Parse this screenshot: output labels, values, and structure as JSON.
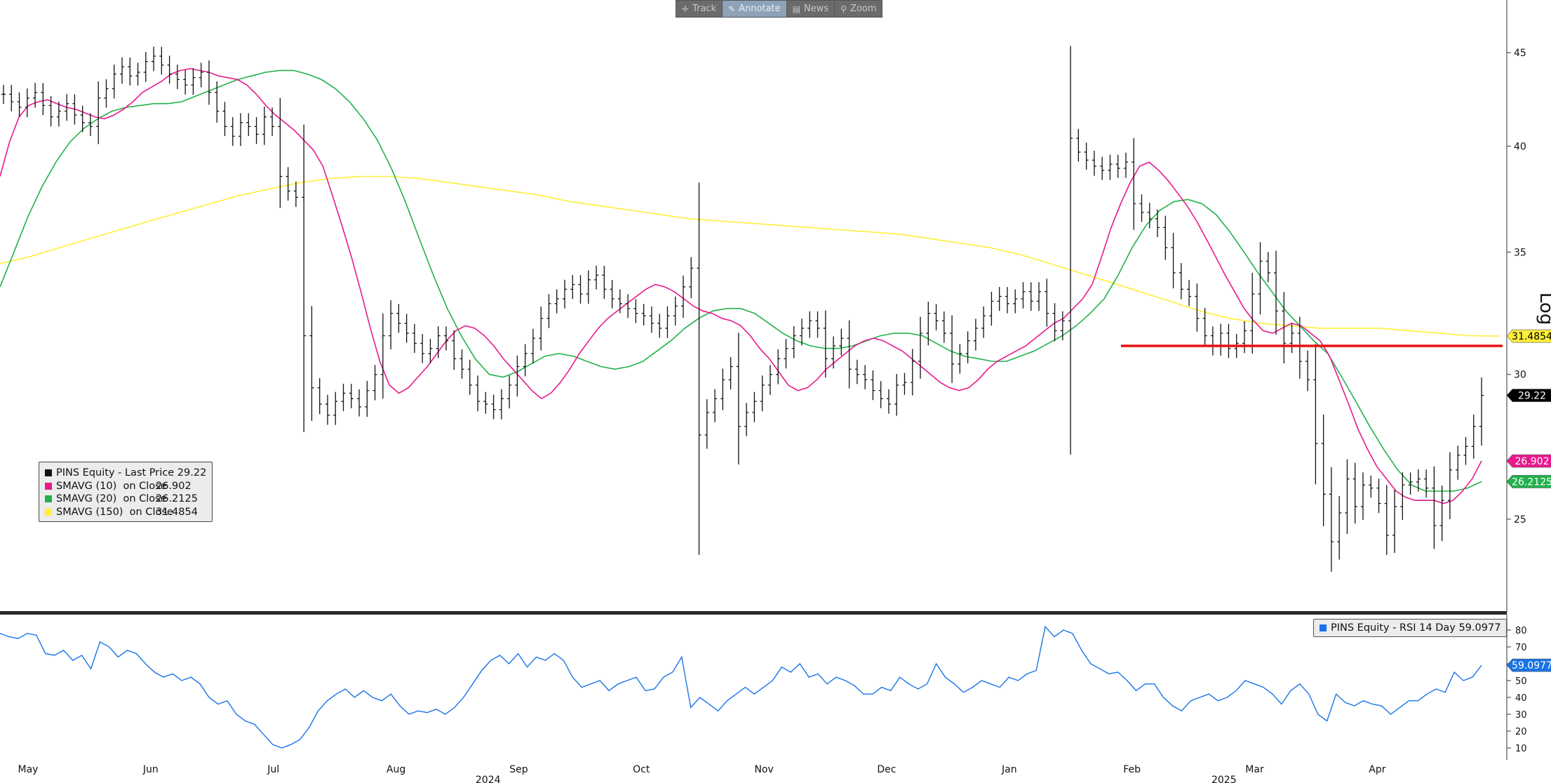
{
  "toolbar": {
    "items": [
      {
        "label": "Track",
        "icon": "crosshair-icon",
        "glyph": "✛",
        "active": false
      },
      {
        "label": "Annotate",
        "icon": "pencil-icon",
        "glyph": "✎",
        "active": true
      },
      {
        "label": "News",
        "icon": "news-icon",
        "glyph": "▤",
        "active": false
      },
      {
        "label": "Zoom",
        "icon": "magnifier-icon",
        "glyph": "⚲",
        "active": false
      }
    ]
  },
  "legend": {
    "rows": [
      {
        "name": "PINS Equity - Last Price",
        "value": "29.22",
        "color": "#111111"
      },
      {
        "name": "SMAVG (10)  on Close",
        "value": "26.902",
        "color": "#e8198c"
      },
      {
        "name": "SMAVG (20)  on Close",
        "value": "26.2125",
        "color": "#22b14c"
      },
      {
        "name": "SMAVG (150)  on Close",
        "value": "31.4854",
        "color": "#ffef3a"
      }
    ]
  },
  "rsi_legend": {
    "name": "PINS Equity - RSI 14 Day",
    "value": "59.0977",
    "color": "#1a73e8"
  },
  "badges": [
    {
      "text": "31.4854",
      "value": 31.4854,
      "bg": "#ffef3a",
      "fg": "#000000"
    },
    {
      "text": "29.22",
      "value": 29.22,
      "bg": "#000000",
      "fg": "#ffffff"
    },
    {
      "text": "26.902",
      "value": 26.902,
      "bg": "#e8198c",
      "fg": "#ffffff"
    },
    {
      "text": "26.2125",
      "value": 26.2125,
      "bg": "#22b14c",
      "fg": "#ffffff"
    }
  ],
  "rsi_badge": {
    "text": "59.0977",
    "value": 59.0977,
    "bg": "#1a73e8",
    "fg": "#ffffff"
  },
  "scale_label": "Log",
  "chart_data": {
    "type": "line",
    "title": "",
    "scale": "log",
    "price_ticks": [
      25,
      30,
      35,
      40,
      45
    ],
    "rsi_ticks": [
      10,
      20,
      30,
      40,
      50,
      60,
      70,
      80
    ],
    "month_labels": [
      "May",
      "Jun",
      "Jul",
      "Aug",
      "Sep",
      "Oct",
      "Nov",
      "Dec",
      "Jan",
      "Feb",
      "Mar",
      "Apr"
    ],
    "year_labels": [
      "2024",
      "2025"
    ],
    "horizontal_line": {
      "value": 31.1,
      "color": "#e81010",
      "start_month": "Feb 2025"
    },
    "grid": false,
    "legend_position": "bottom-left",
    "series": [
      {
        "name": "PINS Equity - Last Price",
        "color": "#111111",
        "values": [
          42.7,
          42.3,
          42.0,
          42.5,
          42.8,
          42.1,
          41.5,
          41.8,
          42.2,
          41.6,
          41.2,
          41.0,
          42.5,
          43.0,
          43.8,
          44.2,
          43.7,
          43.9,
          44.5,
          44.8,
          44.3,
          43.8,
          43.5,
          43.2,
          43.6,
          43.9,
          42.8,
          41.8,
          41.0,
          40.5,
          41.2,
          41.0,
          40.6,
          41.5,
          41.0,
          38.5,
          37.8,
          37.5,
          31.5,
          29.5,
          28.9,
          28.5,
          29.0,
          29.3,
          29.1,
          28.8,
          29.4,
          30.0,
          31.5,
          32.4,
          32.0,
          31.6,
          31.2,
          30.8,
          31.0,
          31.5,
          31.3,
          30.6,
          30.2,
          29.6,
          29.0,
          28.9,
          28.7,
          29.1,
          29.6,
          30.3,
          30.8,
          31.4,
          32.2,
          32.8,
          33.0,
          33.4,
          33.6,
          33.2,
          33.8,
          34.0,
          33.4,
          33.0,
          32.8,
          32.6,
          32.4,
          32.3,
          32.0,
          31.8,
          32.3,
          32.7,
          33.5,
          34.3,
          27.8,
          28.6,
          29.1,
          29.8,
          30.3,
          28.1,
          28.6,
          29.0,
          29.6,
          30.0,
          30.6,
          31.0,
          31.5,
          31.8,
          32.1,
          31.8,
          30.6,
          31.1,
          31.4,
          30.2,
          30.0,
          29.8,
          29.4,
          29.1,
          28.9,
          29.6,
          29.7,
          30.5,
          31.6,
          32.4,
          32.1,
          31.6,
          30.4,
          30.8,
          31.3,
          31.8,
          32.3,
          32.9,
          33.1,
          32.8,
          33.0,
          33.3,
          32.9,
          33.3,
          32.4,
          31.7,
          32.1,
          40.4,
          39.7,
          39.3,
          39.0,
          38.8,
          39.1,
          38.9,
          39.2,
          37.2,
          36.8,
          36.5,
          36.1,
          35.2,
          34.1,
          33.4,
          33.1,
          32.2,
          31.5,
          31.1,
          31.6,
          31.0,
          31.2,
          31.7,
          33.2,
          34.6,
          34.1,
          32.5,
          31.2,
          31.6,
          30.5,
          29.8,
          27.5,
          25.8,
          24.3,
          25.2,
          26.3,
          25.4,
          26.1,
          26.0,
          25.5,
          24.5,
          25.4,
          26.1,
          26.2,
          26.3,
          26.0,
          24.8,
          25.6,
          26.6,
          27.1,
          27.4,
          28.1,
          29.22
        ]
      },
      {
        "name": "SMAVG (10)  on Close",
        "color": "#e8198c",
        "values": [
          38.5,
          40.2,
          41.5,
          42.1,
          42.3,
          42.4,
          42.2,
          42.0,
          41.9,
          41.7,
          41.5,
          41.4,
          41.6,
          41.9,
          42.3,
          42.8,
          43.1,
          43.4,
          43.8,
          44.0,
          44.1,
          44.0,
          43.9,
          43.7,
          43.6,
          43.5,
          43.2,
          42.7,
          42.1,
          41.6,
          41.2,
          40.8,
          40.3,
          39.8,
          39.0,
          37.6,
          36.2,
          34.8,
          33.3,
          31.8,
          30.5,
          29.6,
          29.3,
          29.5,
          29.9,
          30.3,
          30.8,
          31.3,
          31.7,
          31.9,
          31.8,
          31.5,
          31.1,
          30.6,
          30.2,
          29.8,
          29.4,
          29.1,
          29.3,
          29.7,
          30.2,
          30.8,
          31.3,
          31.8,
          32.2,
          32.5,
          32.8,
          33.1,
          33.4,
          33.6,
          33.5,
          33.3,
          33.0,
          32.7,
          32.5,
          32.4,
          32.2,
          32.1,
          31.9,
          31.5,
          31.0,
          30.6,
          30.1,
          29.6,
          29.4,
          29.5,
          29.8,
          30.2,
          30.5,
          30.8,
          31.1,
          31.3,
          31.4,
          31.3,
          31.1,
          30.9,
          30.6,
          30.3,
          30.0,
          29.7,
          29.5,
          29.4,
          29.5,
          29.8,
          30.2,
          30.5,
          30.7,
          30.9,
          31.1,
          31.4,
          31.7,
          32.0,
          32.2,
          32.6,
          33.0,
          33.6,
          34.8,
          36.1,
          37.2,
          38.2,
          39.0,
          39.2,
          38.8,
          38.3,
          37.7,
          37.1,
          36.4,
          35.6,
          34.8,
          34.0,
          33.3,
          32.6,
          32.1,
          31.7,
          31.6,
          31.8,
          32.0,
          31.9,
          31.6,
          31.3,
          30.7,
          29.8,
          28.9,
          28.0,
          27.3,
          26.7,
          26.3,
          25.9,
          25.7,
          25.6,
          25.6,
          25.6,
          25.5,
          25.6,
          25.9,
          26.3,
          26.902
        ]
      },
      {
        "name": "SMAVG (20)  on Close",
        "color": "#22b14c",
        "values": [
          33.5,
          35.0,
          36.6,
          38.0,
          39.2,
          40.2,
          40.9,
          41.4,
          41.8,
          42.0,
          42.1,
          42.2,
          42.2,
          42.3,
          42.6,
          42.9,
          43.2,
          43.5,
          43.7,
          43.9,
          44.0,
          44.0,
          43.8,
          43.5,
          43.0,
          42.3,
          41.4,
          40.3,
          38.9,
          37.3,
          35.6,
          34.0,
          32.6,
          31.5,
          30.6,
          30.0,
          29.9,
          30.1,
          30.4,
          30.7,
          30.8,
          30.7,
          30.5,
          30.3,
          30.2,
          30.3,
          30.5,
          30.9,
          31.3,
          31.8,
          32.2,
          32.5,
          32.6,
          32.6,
          32.4,
          32.0,
          31.6,
          31.3,
          31.1,
          31.0,
          31.0,
          31.1,
          31.3,
          31.5,
          31.6,
          31.6,
          31.5,
          31.2,
          30.9,
          30.7,
          30.6,
          30.5,
          30.5,
          30.7,
          30.9,
          31.2,
          31.5,
          31.9,
          32.4,
          33.0,
          34.0,
          35.2,
          36.2,
          36.9,
          37.3,
          37.4,
          37.2,
          36.7,
          35.9,
          35.0,
          34.1,
          33.3,
          32.5,
          31.9,
          31.3,
          30.8,
          29.9,
          29.0,
          28.1,
          27.3,
          26.6,
          26.1,
          25.9,
          25.9,
          25.9,
          26.0,
          26.2125
        ]
      },
      {
        "name": "SMAVG (150)  on Close",
        "color": "#ffef3a",
        "values": [
          34.5,
          34.8,
          35.2,
          35.6,
          36.0,
          36.4,
          36.8,
          37.2,
          37.6,
          37.9,
          38.2,
          38.4,
          38.5,
          38.5,
          38.4,
          38.2,
          38.0,
          37.8,
          37.6,
          37.3,
          37.1,
          36.9,
          36.7,
          36.5,
          36.4,
          36.3,
          36.2,
          36.1,
          36.0,
          35.9,
          35.8,
          35.6,
          35.4,
          35.2,
          34.9,
          34.5,
          34.1,
          33.7,
          33.3,
          32.9,
          32.5,
          32.2,
          32.0,
          31.9,
          31.8,
          31.8,
          31.8,
          31.7,
          31.6,
          31.5,
          31.4854
        ]
      },
      {
        "name": "PINS Equity - RSI 14 Day",
        "color": "#1a73e8",
        "values": [
          78,
          76,
          75,
          78,
          77,
          66,
          65,
          68,
          62,
          65,
          57,
          73,
          70,
          64,
          68,
          66,
          60,
          55,
          52,
          54,
          50,
          52,
          48,
          40,
          36,
          38,
          30,
          26,
          24,
          18,
          12,
          10,
          12,
          15,
          22,
          32,
          38,
          42,
          45,
          40,
          44,
          40,
          38,
          42,
          35,
          30,
          32,
          31,
          33,
          30,
          34,
          40,
          48,
          56,
          62,
          65,
          60,
          66,
          58,
          64,
          62,
          66,
          62,
          52,
          46,
          48,
          50,
          44,
          48,
          50,
          52,
          44,
          45,
          52,
          55,
          64,
          34,
          40,
          36,
          32,
          38,
          42,
          46,
          42,
          46,
          50,
          58,
          55,
          60,
          52,
          54,
          48,
          52,
          50,
          47,
          42,
          42,
          46,
          44,
          52,
          48,
          45,
          48,
          60,
          52,
          48,
          43,
          46,
          50,
          48,
          46,
          52,
          50,
          54,
          56,
          82,
          76,
          80,
          78,
          68,
          60,
          57,
          54,
          55,
          50,
          44,
          48,
          48,
          40,
          35,
          32,
          38,
          40,
          42,
          38,
          40,
          44,
          50,
          48,
          46,
          42,
          36,
          44,
          48,
          42,
          30,
          26,
          42,
          37,
          35,
          38,
          36,
          35,
          30,
          34,
          38,
          38,
          42,
          45,
          43,
          55,
          50,
          52,
          59.0977
        ]
      }
    ]
  }
}
